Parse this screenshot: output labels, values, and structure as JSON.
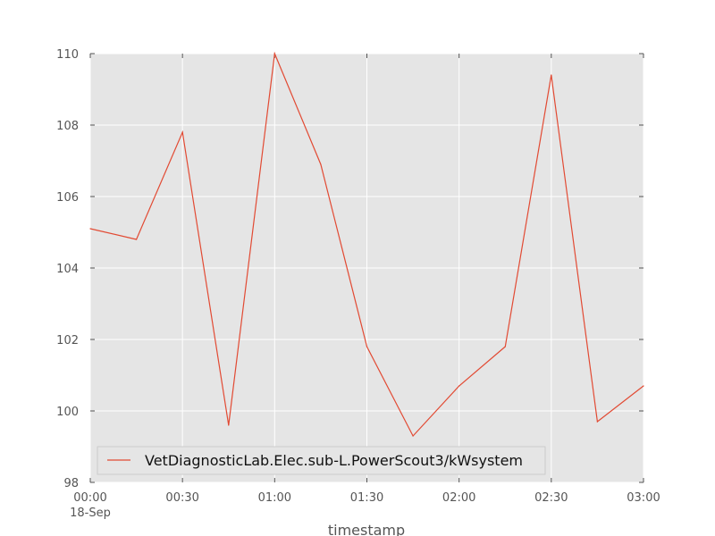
{
  "chart_data": {
    "type": "line",
    "x": [
      "00:00",
      "00:15",
      "00:30",
      "00:45",
      "01:00",
      "01:15",
      "01:30",
      "01:45",
      "02:00",
      "02:15",
      "02:30",
      "02:45",
      "03:00"
    ],
    "series": [
      {
        "name": "VetDiagnosticLab.Elec.sub-L.PowerScout3/kWsystem",
        "values": [
          105.1,
          104.8,
          107.8,
          99.6,
          110.0,
          106.9,
          101.8,
          99.3,
          100.7,
          101.8,
          109.4,
          99.7,
          100.7
        ],
        "color": "#e24a33"
      }
    ],
    "xticks": [
      "00:00",
      "00:30",
      "01:00",
      "01:30",
      "02:00",
      "02:30",
      "03:00"
    ],
    "xtick_sublabel": "18-Sep",
    "yticks": [
      98,
      100,
      102,
      104,
      106,
      108,
      110
    ],
    "ylim": [
      98,
      110
    ],
    "xlabel": "timestamp",
    "ylabel": "",
    "grid": true,
    "legend_position": "lower-left",
    "background_color": "#e5e5e5",
    "grid_color": "#ffffff"
  }
}
